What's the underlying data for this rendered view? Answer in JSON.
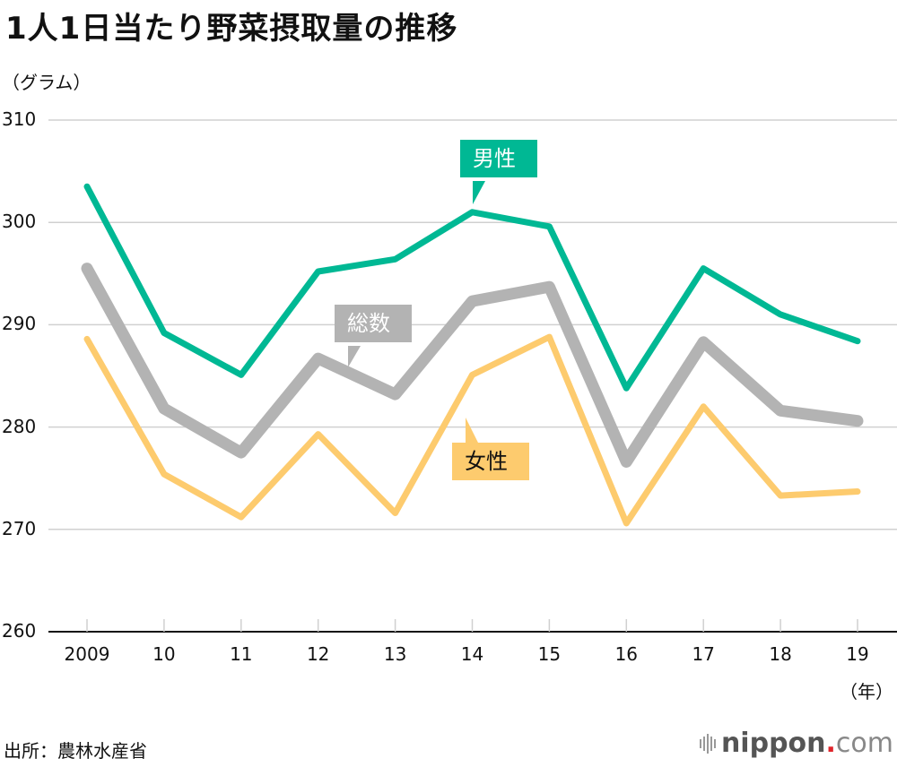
{
  "header": {
    "title": "1人1日当たり野菜摂取量の推移",
    "unit": "（グラム）"
  },
  "footer": {
    "source": "出所：農林水産省",
    "logo_main": "nippon",
    "logo_dot": ".",
    "logo_tld": "com"
  },
  "colors": {
    "male": "#00b894",
    "total": "#b3b3b3",
    "female": "#fdcb6e",
    "grid": "#d0d0d0",
    "axis": "#111111"
  },
  "chart_data": {
    "type": "line",
    "title": "1人1日当たり野菜摂取量の推移",
    "xlabel": "（年）",
    "ylabel": "（グラム）",
    "x": [
      "2009",
      "10",
      "11",
      "12",
      "13",
      "14",
      "15",
      "16",
      "17",
      "18",
      "19"
    ],
    "ylim": [
      260,
      310
    ],
    "yticks": [
      260,
      270,
      280,
      290,
      300,
      310
    ],
    "grid": true,
    "series": [
      {
        "name": "男性",
        "key": "male",
        "values": [
          303.5,
          289.2,
          285.1,
          295.2,
          296.4,
          301.0,
          299.6,
          283.8,
          295.5,
          291.0,
          288.4
        ]
      },
      {
        "name": "総数",
        "key": "total",
        "values": [
          295.5,
          281.8,
          277.5,
          286.7,
          283.2,
          292.3,
          293.7,
          276.6,
          288.3,
          281.6,
          280.6
        ]
      },
      {
        "name": "女性",
        "key": "female",
        "values": [
          288.6,
          275.4,
          271.2,
          279.3,
          271.6,
          285.1,
          288.8,
          270.6,
          282.0,
          273.3,
          273.7
        ]
      }
    ],
    "legend": "inline-callouts"
  }
}
